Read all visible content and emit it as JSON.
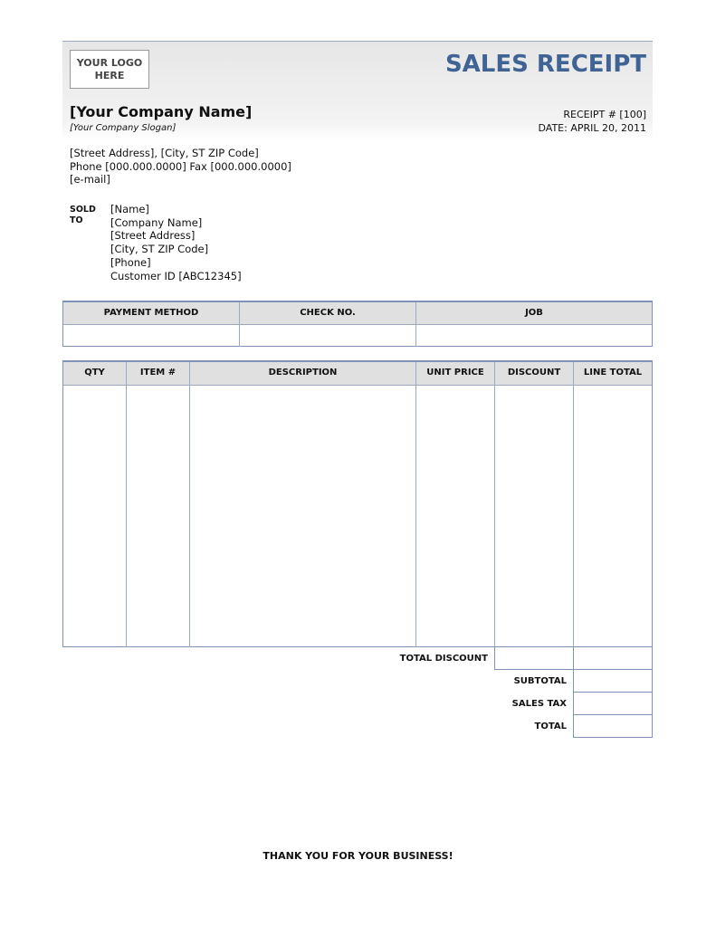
{
  "header": {
    "logo": [
      "YOUR LOGO",
      "HERE"
    ],
    "title": "SALES RECEIPT",
    "company_name": "[Your Company Name]",
    "slogan": "[Your Company Slogan]",
    "receipt_number": "RECEIPT # [100]",
    "date": "DATE: APRIL 20, 2011"
  },
  "address": [
    "[Street Address], [City, ST  ZIP Code]",
    "Phone [000.000.0000] Fax [000.000.0000]",
    "[e-mail]"
  ],
  "sold_to": {
    "label": [
      "SOLD",
      "TO"
    ],
    "lines": [
      "[Name]",
      "[Company Name]",
      "[Street Address]",
      "[City, ST  ZIP Code]",
      "[Phone]",
      "Customer ID [ABC12345]"
    ]
  },
  "payment_table": {
    "headers": [
      "PAYMENT METHOD",
      "CHECK NO.",
      "JOB"
    ]
  },
  "items_table": {
    "headers": [
      "QTY",
      "ITEM #",
      "DESCRIPTION",
      "UNIT PRICE",
      "DISCOUNT",
      "LINE TOTAL"
    ]
  },
  "totals": {
    "labels": [
      "TOTAL DISCOUNT",
      "SUBTOTAL",
      "SALES TAX",
      "TOTAL"
    ]
  },
  "footer": "THANK YOU FOR YOUR BUSINESS!"
}
